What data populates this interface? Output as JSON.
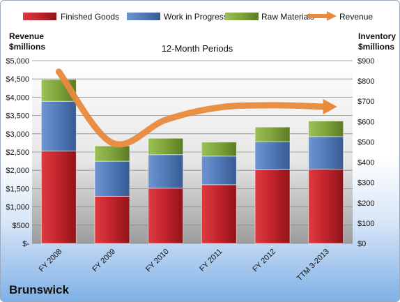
{
  "company_name": "Brunswick",
  "colors": {
    "finished_goods": "#c0232b",
    "work_in_progress": "#5079b8",
    "raw_materials": "#7ea33a",
    "revenue": "#e88a3c"
  },
  "chart_data": {
    "type": "bar",
    "stacked": true,
    "title": "12-Month Periods",
    "categories": [
      "FY 2008",
      "FY 2009",
      "FY 2010",
      "FY 2011",
      "FY 2012",
      "TTM 3-2013"
    ],
    "y_left": {
      "label_line1": "Revenue",
      "label_line2": "$millions",
      "ylim": [
        0,
        5000
      ],
      "ticks": [
        0,
        500,
        1000,
        1500,
        2000,
        2500,
        3000,
        3500,
        4000,
        4500,
        5000
      ],
      "tick_labels": [
        "$-",
        "$500",
        "$1,000",
        "$1,500",
        "$2,000",
        "$2,500",
        "$3,000",
        "$3,500",
        "$4,000",
        "$4,500",
        "$5,000"
      ]
    },
    "y_right": {
      "label_line1": "Inventory",
      "label_line2": "$millions",
      "ylim": [
        0,
        900
      ],
      "ticks": [
        0,
        100,
        200,
        300,
        400,
        500,
        600,
        700,
        800,
        900
      ],
      "tick_labels": [
        "$0",
        "$100",
        "$200",
        "$300",
        "$400",
        "$500",
        "$600",
        "$700",
        "$800",
        "$900"
      ]
    },
    "series": [
      {
        "name": "Finished Goods",
        "axis": "right",
        "values": [
          455,
          232,
          272,
          289,
          363,
          366
        ]
      },
      {
        "name": "Work in Progress",
        "axis": "right",
        "values": [
          245,
          173,
          165,
          141,
          138,
          160
        ]
      },
      {
        "name": "Raw Materials",
        "axis": "right",
        "values": [
          107,
          75,
          81,
          69,
          72,
          77
        ]
      },
      {
        "name": "Revenue",
        "axis": "left",
        "type": "line",
        "values": [
          4700,
          2750,
          3380,
          3720,
          3780,
          3740
        ]
      }
    ],
    "legend": [
      "Finished Goods",
      "Work in Progress",
      "Raw Materials",
      "Revenue"
    ],
    "legend_position": "top",
    "grid": true
  }
}
